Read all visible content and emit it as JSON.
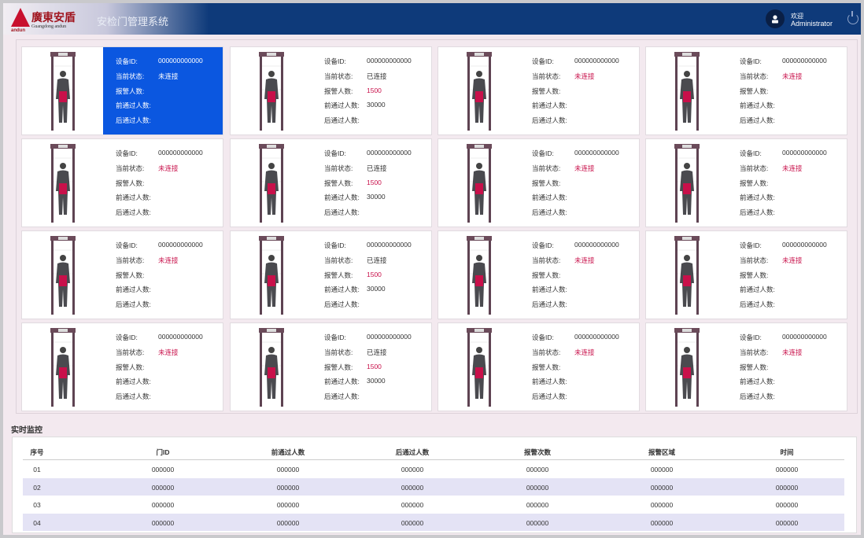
{
  "header": {
    "logo_cn": "廣東安盾",
    "logo_en": "Guangdong andun",
    "logo_sub": "andun",
    "title": "安检门管理系统",
    "welcome": "欢迎",
    "user": "Administrator"
  },
  "labels": {
    "id": "设备ID:",
    "status": "当前状态:",
    "alarm": "报警人数:",
    "front": "前通过人数:",
    "back": "后通过人数:"
  },
  "colors": {
    "header": "#0e3a7a",
    "selected": "#0b57e0",
    "disconnected": "#c8104a"
  },
  "cards": [
    {
      "id": "000000000000",
      "status": "未连接",
      "connected": false,
      "alarm": "",
      "front": "",
      "selected": true
    },
    {
      "id": "000000000000",
      "status": "已连接",
      "connected": true,
      "alarm": "1500",
      "front": "30000"
    },
    {
      "id": "000000000000",
      "status": "未连接",
      "connected": false,
      "alarm": "",
      "front": ""
    },
    {
      "id": "000000000000",
      "status": "未连接",
      "connected": false,
      "alarm": "",
      "front": ""
    },
    {
      "id": "000000000000",
      "status": "未连接",
      "connected": false,
      "alarm": "",
      "front": ""
    },
    {
      "id": "000000000000",
      "status": "已连接",
      "connected": true,
      "alarm": "1500",
      "front": "30000"
    },
    {
      "id": "000000000000",
      "status": "未连接",
      "connected": false,
      "alarm": "",
      "front": ""
    },
    {
      "id": "000000000000",
      "status": "未连接",
      "connected": false,
      "alarm": "",
      "front": ""
    },
    {
      "id": "000000000000",
      "status": "未连接",
      "connected": false,
      "alarm": "",
      "front": ""
    },
    {
      "id": "000000000000",
      "status": "已连接",
      "connected": true,
      "alarm": "1500",
      "front": "30000"
    },
    {
      "id": "000000000000",
      "status": "未连接",
      "connected": false,
      "alarm": "",
      "front": ""
    },
    {
      "id": "000000000000",
      "status": "未连接",
      "connected": false,
      "alarm": "",
      "front": ""
    },
    {
      "id": "000000000000",
      "status": "未连接",
      "connected": false,
      "alarm": "",
      "front": ""
    },
    {
      "id": "000000000000",
      "status": "已连接",
      "connected": true,
      "alarm": "1500",
      "front": "30000"
    },
    {
      "id": "000000000000",
      "status": "未连接",
      "connected": false,
      "alarm": "",
      "front": ""
    },
    {
      "id": "000000000000",
      "status": "未连接",
      "connected": false,
      "alarm": "",
      "front": ""
    }
  ],
  "monitor": {
    "title": "实时监控",
    "columns": [
      "序号",
      "门ID",
      "前通过人数",
      "后通过人数",
      "报警次数",
      "报警区域",
      "时间"
    ],
    "rows": [
      [
        "01",
        "000000",
        "000000",
        "000000",
        "000000",
        "000000",
        "000000"
      ],
      [
        "02",
        "000000",
        "000000",
        "000000",
        "000000",
        "000000",
        "000000"
      ],
      [
        "03",
        "000000",
        "000000",
        "000000",
        "000000",
        "000000",
        "000000"
      ],
      [
        "04",
        "000000",
        "000000",
        "000000",
        "000000",
        "000000",
        "000000"
      ]
    ]
  }
}
